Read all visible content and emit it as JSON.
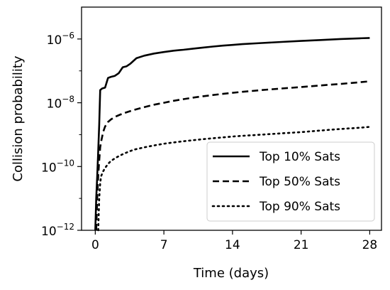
{
  "chart_data": {
    "type": "line",
    "xlabel": "Time (days)",
    "ylabel": "Collision probability",
    "x_ticks": [
      0,
      7,
      14,
      21,
      28
    ],
    "y_ticks": [
      {
        "base": "10",
        "exp": "−12",
        "value": 1e-12
      },
      {
        "base": "10",
        "exp": "−10",
        "value": 1e-10
      },
      {
        "base": "10",
        "exp": "−8",
        "value": 1e-08
      },
      {
        "base": "10",
        "exp": "−6",
        "value": 1e-06
      }
    ],
    "xlim": [
      -1.4,
      29.2
    ],
    "ylim": [
      1e-12,
      1e-05
    ],
    "yscale": "log",
    "grid": false,
    "legend_position": "lower-right",
    "series": [
      {
        "name": "Top 10% Sats",
        "style": "solid",
        "x": [
          0.0,
          0.1,
          0.2,
          0.3,
          0.4,
          0.5,
          0.7,
          1.0,
          1.3,
          1.6,
          2.0,
          2.4,
          2.8,
          3.2,
          3.6,
          4.2,
          5.0,
          6.0,
          7.0,
          8.0,
          9.0,
          10.0,
          11.0,
          12.0,
          13.0,
          14.0,
          15.0,
          17.0,
          19.0,
          21.0,
          23.0,
          25.0,
          27.0,
          28.0
        ],
        "y": [
          1e-12,
          1e-11,
          5e-11,
          3e-10,
          2e-09,
          2.5e-08,
          2.8e-08,
          3e-08,
          6e-08,
          6.5e-08,
          7e-08,
          8.5e-08,
          1.3e-07,
          1.4e-07,
          1.7e-07,
          2.5e-07,
          3e-07,
          3.5e-07,
          3.9e-07,
          4.3e-07,
          4.6e-07,
          5e-07,
          5.4e-07,
          5.8e-07,
          6.2e-07,
          6.5e-07,
          6.9e-07,
          7.5e-07,
          8.1e-07,
          8.7e-07,
          9.3e-07,
          1e-06,
          1.05e-06,
          1.08e-06
        ]
      },
      {
        "name": "Top 50% Sats",
        "style": "dashed",
        "x": [
          0.1,
          0.2,
          0.3,
          0.4,
          0.5,
          0.6,
          0.8,
          1.0,
          1.3,
          1.6,
          2.0,
          2.5,
          3.0,
          3.5,
          4.0,
          5.0,
          6.0,
          7.0,
          8.0,
          9.0,
          10.0,
          11.0,
          12.0,
          13.0,
          14.0,
          15.0,
          17.0,
          19.0,
          21.0,
          23.0,
          25.0,
          27.0,
          28.0
        ],
        "y": [
          1e-12,
          1e-11,
          5e-11,
          1.5e-10,
          4e-10,
          6e-10,
          1.2e-09,
          1.8e-09,
          2.5e-09,
          3e-09,
          3.6e-09,
          4.2e-09,
          4.8e-09,
          5.4e-09,
          6e-09,
          7.3e-09,
          8.7e-09,
          1e-08,
          1.15e-08,
          1.3e-08,
          1.45e-08,
          1.6e-08,
          1.75e-08,
          1.9e-08,
          2.05e-08,
          2.2e-08,
          2.5e-08,
          2.8e-08,
          3.1e-08,
          3.5e-08,
          3.9e-08,
          4.4e-08,
          4.7e-08
        ]
      },
      {
        "name": "Top 90% Sats",
        "style": "dotted",
        "x": [
          0.3,
          0.4,
          0.5,
          0.6,
          0.8,
          1.0,
          1.3,
          1.6,
          2.0,
          2.5,
          3.0,
          3.5,
          4.0,
          5.0,
          6.0,
          7.0,
          8.0,
          9.0,
          10.0,
          11.0,
          12.0,
          13.0,
          14.0,
          15.0,
          17.0,
          19.0,
          21.0,
          23.0,
          25.0,
          27.0,
          28.0
        ],
        "y": [
          1e-12,
          1e-11,
          3e-11,
          5e-11,
          7e-11,
          9e-11,
          1.2e-10,
          1.5e-10,
          1.8e-10,
          2.2e-10,
          2.6e-10,
          3e-10,
          3.4e-10,
          4e-10,
          4.6e-10,
          5.2e-10,
          5.7e-10,
          6.2e-10,
          6.7e-10,
          7.2e-10,
          7.7e-10,
          8.2e-10,
          8.7e-10,
          9.2e-10,
          1e-09,
          1.1e-09,
          1.2e-09,
          1.35e-09,
          1.5e-09,
          1.65e-09,
          1.75e-09
        ]
      }
    ]
  }
}
